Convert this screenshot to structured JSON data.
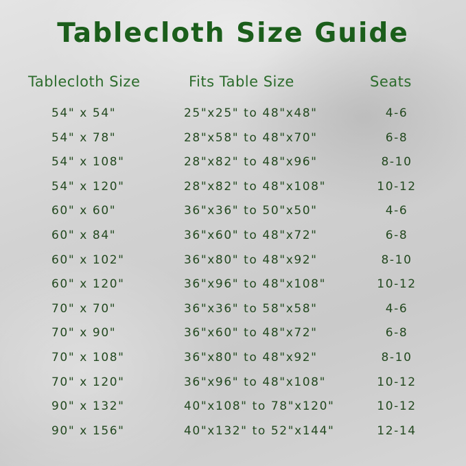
{
  "title": "Tablecloth Size Guide",
  "headers": {
    "size": "Tablecloth Size",
    "fits": "Fits Table Size",
    "seats": "Seats"
  },
  "colors": {
    "title": "#1b5e1b",
    "header": "#2b6b2b",
    "text": "#22481f"
  },
  "rows": [
    {
      "size": "54\" x 54\"",
      "fits": "25\"x25\" to 48\"x48\"",
      "seats": "4-6"
    },
    {
      "size": "54\" x 78\"",
      "fits": "28\"x58\" to 48\"x70\"",
      "seats": "6-8"
    },
    {
      "size": "54\" x 108\"",
      "fits": "28\"x82\" to 48\"x96\"",
      "seats": "8-10"
    },
    {
      "size": "54\" x 120\"",
      "fits": "28\"x82\" to 48\"x108\"",
      "seats": "10-12"
    },
    {
      "size": "60\" x 60\"",
      "fits": "36\"x36\" to 50\"x50\"",
      "seats": "4-6"
    },
    {
      "size": "60\" x 84\"",
      "fits": "36\"x60\" to 48\"x72\"",
      "seats": "6-8"
    },
    {
      "size": "60\" x 102\"",
      "fits": "36\"x80\" to 48\"x92\"",
      "seats": "8-10"
    },
    {
      "size": "60\" x 120\"",
      "fits": "36\"x96\" to 48\"x108\"",
      "seats": "10-12"
    },
    {
      "size": "70\" x 70\"",
      "fits": "36\"x36\" to 58\"x58\"",
      "seats": "4-6"
    },
    {
      "size": "70\" x 90\"",
      "fits": "36\"x60\" to 48\"x72\"",
      "seats": "6-8"
    },
    {
      "size": "70\" x 108\"",
      "fits": "36\"x80\" to 48\"x92\"",
      "seats": "8-10"
    },
    {
      "size": "70\" x 120\"",
      "fits": "36\"x96\" to 48\"x108\"",
      "seats": "10-12"
    },
    {
      "size": "90\" x 132\"",
      "fits": "40\"x108\" to 78\"x120\"",
      "seats": "10-12"
    },
    {
      "size": "90\" x 156\"",
      "fits": "40\"x132\" to 52\"x144\"",
      "seats": "12-14"
    }
  ]
}
